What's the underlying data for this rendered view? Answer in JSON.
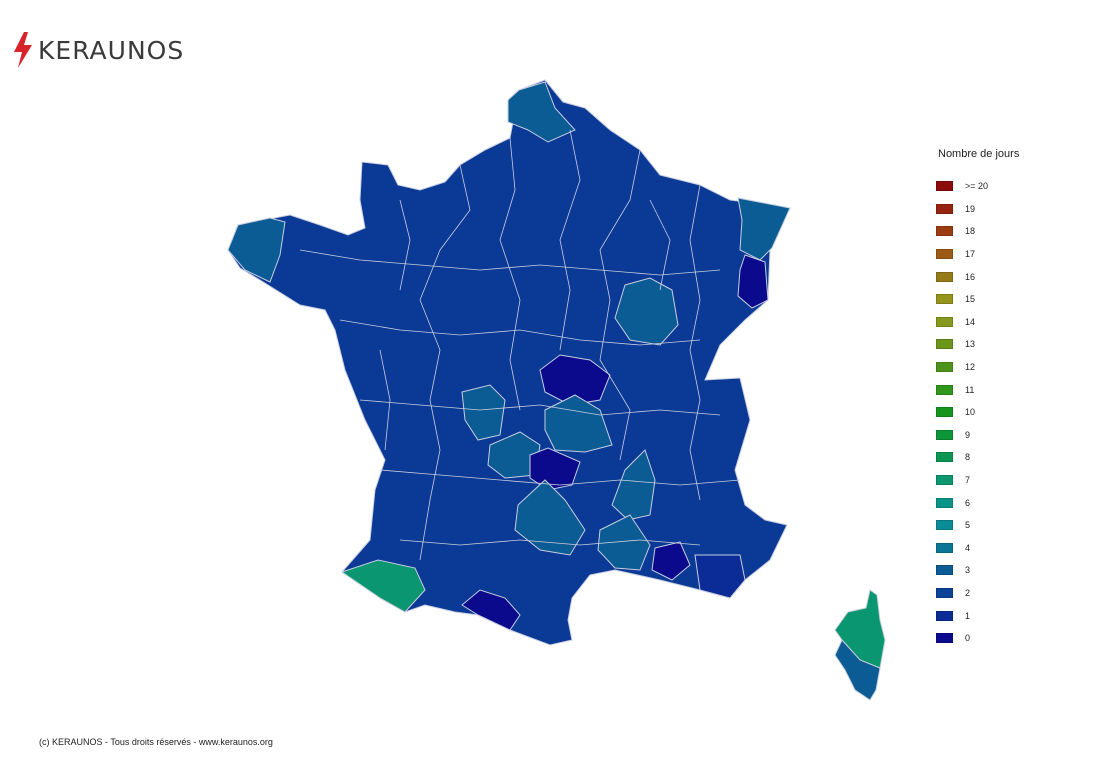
{
  "brand": {
    "name": "KERAUNOS",
    "accent": "#d9232a"
  },
  "legend": {
    "title": "Nombre de jours",
    "items": [
      {
        "label": ">= 20",
        "color": "#8b0a0a"
      },
      {
        "label": "19",
        "color": "#962410"
      },
      {
        "label": "18",
        "color": "#9a3c10"
      },
      {
        "label": "17",
        "color": "#9b5a15"
      },
      {
        "label": "16",
        "color": "#957a18"
      },
      {
        "label": "15",
        "color": "#94931a"
      },
      {
        "label": "14",
        "color": "#86991c"
      },
      {
        "label": "13",
        "color": "#6a961a"
      },
      {
        "label": "12",
        "color": "#4e931a"
      },
      {
        "label": "11",
        "color": "#2f961c"
      },
      {
        "label": "10",
        "color": "#15941e"
      },
      {
        "label": "9",
        "color": "#0c9638"
      },
      {
        "label": "8",
        "color": "#0a9652"
      },
      {
        "label": "7",
        "color": "#0a9670"
      },
      {
        "label": "6",
        "color": "#0a9488"
      },
      {
        "label": "5",
        "color": "#0a8c98"
      },
      {
        "label": "4",
        "color": "#0b7596"
      },
      {
        "label": "3",
        "color": "#0b5b94"
      },
      {
        "label": "2",
        "color": "#0b4396"
      },
      {
        "label": "1",
        "color": "#0b2c96"
      },
      {
        "label": "0",
        "color": "#0b0a8c"
      }
    ]
  },
  "map_colors": {
    "mainland": "#0b3a96",
    "border": "#c8cde0",
    "cat0": "#0b0a8c",
    "cat3": "#0b5b94",
    "cat4": "#0b7596",
    "cat7": "#0a9670"
  },
  "footer": {
    "text": "(c) KERAUNOS - Tous droits réservés - www.keraunos.org"
  }
}
